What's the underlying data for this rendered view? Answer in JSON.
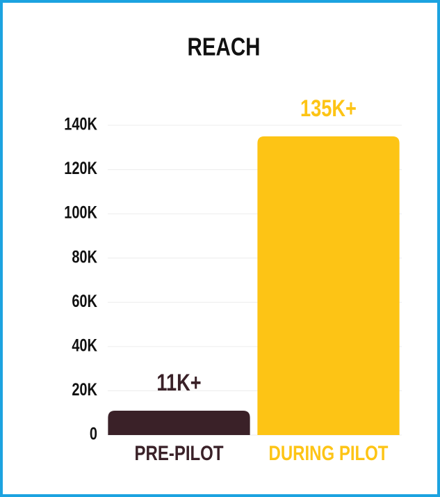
{
  "chart_data": {
    "type": "bar",
    "title": "REACH",
    "categories": [
      "PRE-PILOT",
      "DURING PILOT"
    ],
    "values": [
      11000,
      135000
    ],
    "value_labels": [
      "11K+",
      "135K+"
    ],
    "colors": [
      "#3a2128",
      "#fdc415"
    ],
    "ylim": [
      0,
      140000
    ],
    "yticks": [
      0,
      {
        "value": 20000,
        "label": "20K"
      },
      {
        "value": 40000,
        "label": "40K"
      },
      {
        "value": 60000,
        "label": "60K"
      },
      {
        "value": 80000,
        "label": "80K"
      },
      {
        "value": 100000,
        "label": "100K"
      },
      {
        "value": 120000,
        "label": "120K"
      },
      {
        "value": 140000,
        "label": "140K"
      }
    ],
    "grid": true
  }
}
